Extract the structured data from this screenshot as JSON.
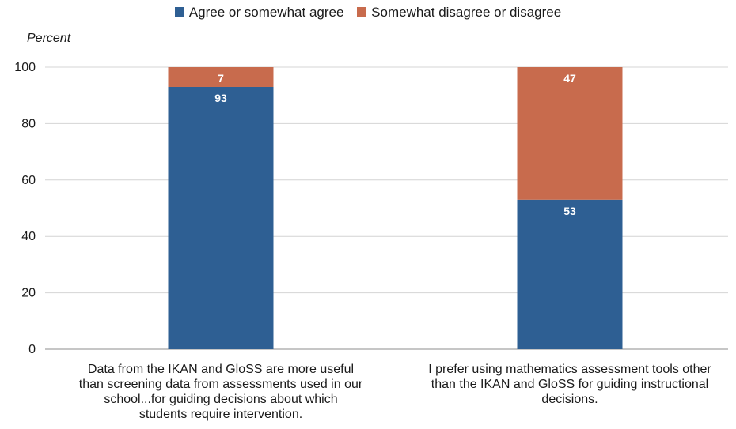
{
  "chart_data": {
    "type": "bar",
    "stacked": true,
    "categories": [
      "Data from the IKAN and GloSS are more useful than screening data from assessments used in our school...for guiding decisions about which students require intervention.",
      "I prefer using mathematics assessment tools other than the IKAN and GloSS for guiding instructional decisions."
    ],
    "series": [
      {
        "name": "Agree or somewhat agree",
        "values": [
          93,
          53
        ],
        "color": "#2e5f93"
      },
      {
        "name": "Somewhat disagree or disagree",
        "values": [
          7,
          47
        ],
        "color": "#c86b4d"
      }
    ],
    "title": "",
    "xlabel": "",
    "ylabel": "Percent",
    "ylim": [
      0,
      100
    ],
    "yticks": [
      0,
      20,
      40,
      60,
      80,
      100
    ],
    "grid": true,
    "legend": "top-center",
    "data_labels": true
  }
}
